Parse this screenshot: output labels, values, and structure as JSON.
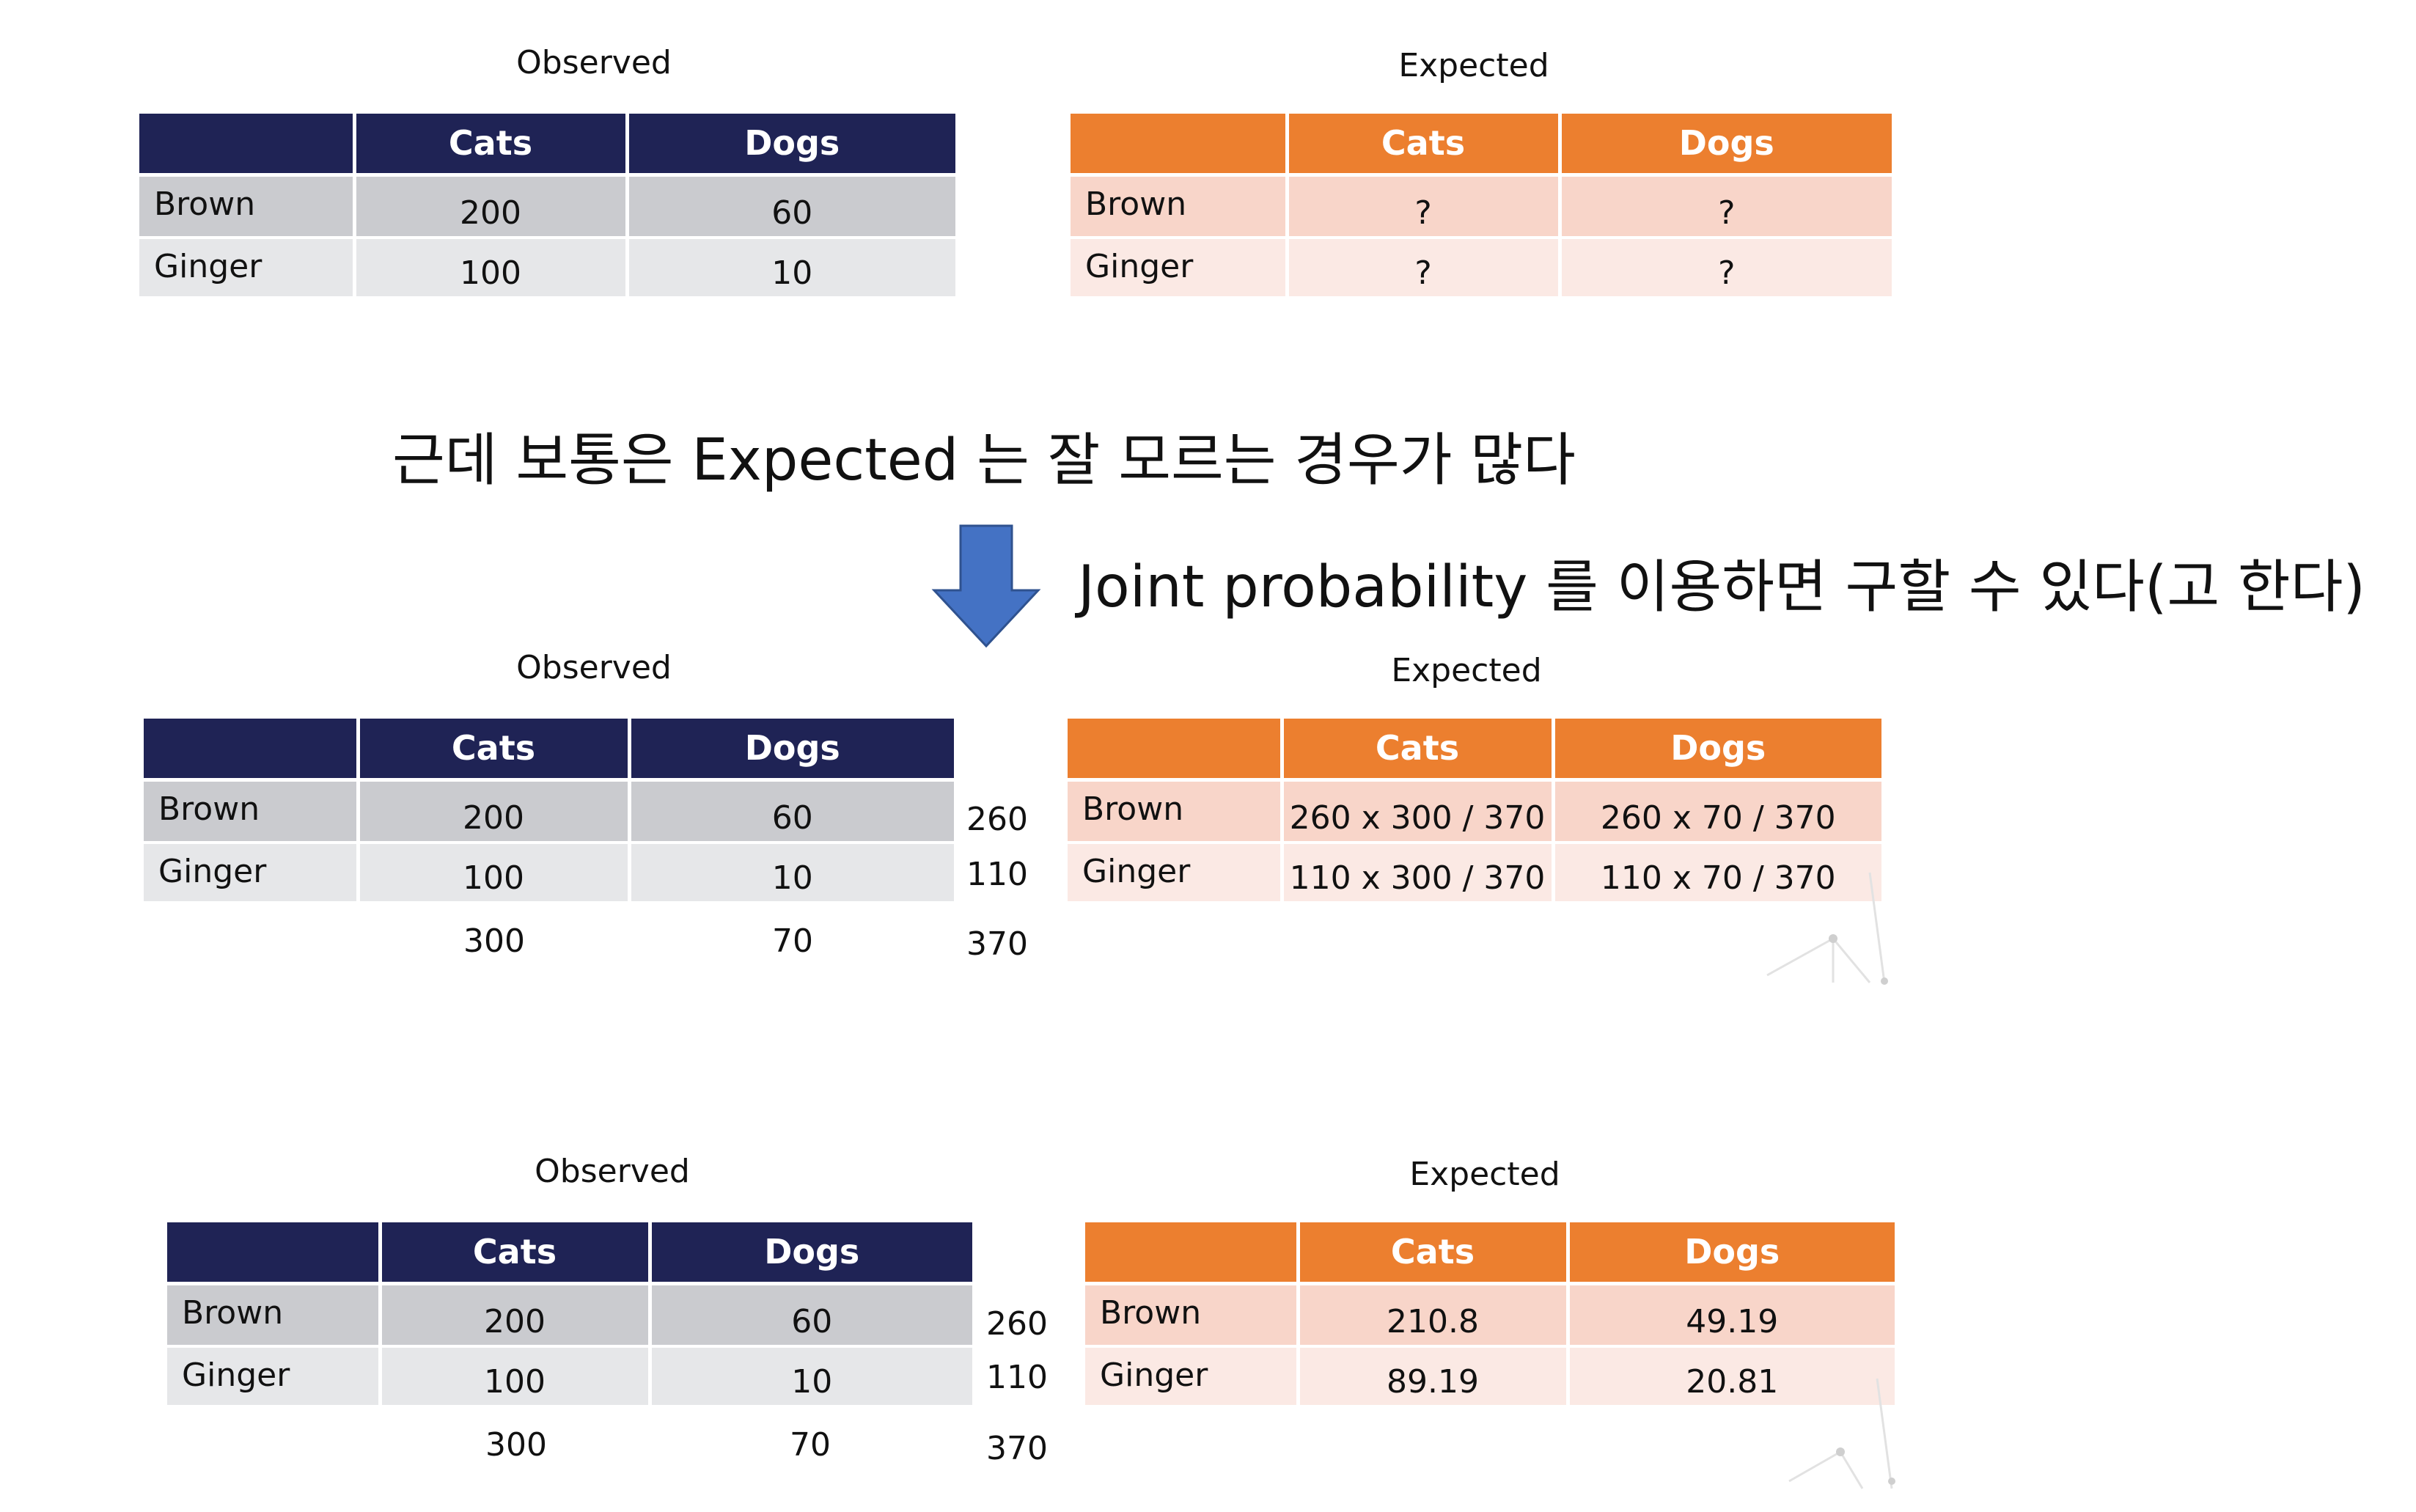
{
  "section1": {
    "observed": {
      "caption": "Observed",
      "header": [
        "",
        "Cats",
        "Dogs"
      ],
      "rows": [
        {
          "label": "Brown",
          "cats": "200",
          "dogs": "60"
        },
        {
          "label": "Ginger",
          "cats": "100",
          "dogs": "10"
        }
      ]
    },
    "expected": {
      "caption": "Expected",
      "header": [
        "",
        "Cats",
        "Dogs"
      ],
      "rows": [
        {
          "label": "Brown",
          "cats": "?",
          "dogs": "?"
        },
        {
          "label": "Ginger",
          "cats": "?",
          "dogs": "?"
        }
      ]
    }
  },
  "statement": "근데 보통은 Expected 는 잘 모르는 경우가 많다",
  "arrow_note": "Joint probability 를 이용하면 구할 수 있다(고 한다)",
  "section2": {
    "observed": {
      "caption": "Observed",
      "header": [
        "",
        "Cats",
        "Dogs"
      ],
      "rows": [
        {
          "label": "Brown",
          "cats": "200",
          "dogs": "60"
        },
        {
          "label": "Ginger",
          "cats": "100",
          "dogs": "10"
        }
      ],
      "row_totals": [
        "260",
        "110"
      ],
      "col_totals": [
        "300",
        "70"
      ],
      "grand_total": "370"
    },
    "expected": {
      "caption": "Expected",
      "header": [
        "",
        "Cats",
        "Dogs"
      ],
      "rows": [
        {
          "label": "Brown",
          "cats": "260 x 300 / 370",
          "dogs": "260 x 70 / 370"
        },
        {
          "label": "Ginger",
          "cats": "110 x 300 / 370",
          "dogs": "110 x 70 / 370"
        }
      ]
    }
  },
  "section3": {
    "observed": {
      "caption": "Observed",
      "header": [
        "",
        "Cats",
        "Dogs"
      ],
      "rows": [
        {
          "label": "Brown",
          "cats": "200",
          "dogs": "60"
        },
        {
          "label": "Ginger",
          "cats": "100",
          "dogs": "10"
        }
      ],
      "row_totals": [
        "260",
        "110"
      ],
      "col_totals": [
        "300",
        "70"
      ],
      "grand_total": "370"
    },
    "expected": {
      "caption": "Expected",
      "header": [
        "",
        "Cats",
        "Dogs"
      ],
      "rows": [
        {
          "label": "Brown",
          "cats": "210.8",
          "dogs": "49.19"
        },
        {
          "label": "Ginger",
          "cats": "89.19",
          "dogs": "20.81"
        }
      ]
    }
  },
  "colors": {
    "observed_header": "#1f2355",
    "observed_row1": "#cacbcf",
    "observed_row2": "#e6e7e9",
    "expected_header": "#ec7f2f",
    "expected_row1": "#f8d5c9",
    "expected_row2": "#fbe9e4",
    "arrow": "#4472c4"
  },
  "icons": {
    "arrow": "down-arrow-icon"
  }
}
